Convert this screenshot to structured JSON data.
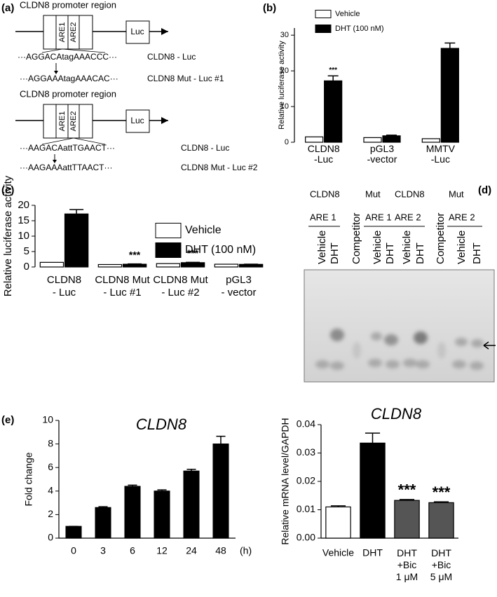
{
  "panel_labels": [
    "(a)",
    "(b)",
    "(c)",
    "(d)",
    "(e)"
  ],
  "diagram_a": {
    "constructs": [
      {
        "title": "CLDN8 promoter region",
        "elements": [
          "ARE1",
          "ARE2",
          "Luc"
        ],
        "sequences": [
          {
            "seq": "···AGGACAtagAAACCC···",
            "label": "CLDN8 - Luc"
          },
          {
            "seq": "···AGGAAAtagAAACAC···",
            "label": "CLDN8 Mut - Luc #1"
          }
        ]
      },
      {
        "title": "CLDN8 promoter region",
        "elements": [
          "ARE1",
          "ARE2",
          "Luc"
        ],
        "sequences": [
          {
            "seq": "···AAGACAattTGAACT···",
            "label": "CLDN8 - Luc"
          },
          {
            "seq": "···AAGAAAattTTAACT···",
            "label": "CLDN8 Mut - Luc #2"
          }
        ]
      }
    ]
  },
  "gel_d": {
    "groups": [
      {
        "top": "CLDN8",
        "site": "ARE 1"
      },
      {
        "top": "Mut",
        "site": "ARE 1"
      },
      {
        "top": "CLDN8",
        "site": "ARE 2"
      },
      {
        "top": "Mut",
        "site": "ARE 2"
      }
    ],
    "lanes": [
      "Vehicle",
      "DHT",
      "Competitor",
      "Vehicle",
      "DHT",
      "Vehicle",
      "DHT",
      "Competitor",
      "Vehicle",
      "DHT"
    ]
  },
  "chart_data": [
    {
      "type": "bar",
      "ylabel": "Relative luciferase activity",
      "categories": [
        "CLDN8\n-Luc",
        "pGL3\n-vector",
        "MMTV\n-Luc"
      ],
      "series": [
        {
          "name": "Vehicle",
          "color": "#ffffff",
          "values": [
            1.5,
            1.3,
            1.0
          ]
        },
        {
          "name": "DHT (100 nM)",
          "color": "#000000",
          "values": [
            17.2,
            1.8,
            26.3
          ],
          "errors": [
            1.4,
            0.2,
            1.5
          ],
          "annotations": [
            "***",
            null,
            null
          ]
        }
      ],
      "ylim": [
        0,
        32
      ],
      "yticks": [
        0,
        10,
        20,
        30
      ],
      "legend": "upper left"
    },
    {
      "type": "bar",
      "ylabel": "Relative luciferase activity",
      "categories": [
        "CLDN8\n- Luc",
        "CLDN8 Mut\n- Luc #1",
        "CLDN8 Mut\n- Luc #2",
        "pGL3\n- vector"
      ],
      "series": [
        {
          "name": "Vehicle",
          "color": "#ffffff",
          "values": [
            1.5,
            0.8,
            1.1,
            0.9
          ]
        },
        {
          "name": "DHT (100 nM)",
          "color": "#000000",
          "values": [
            17.2,
            0.9,
            1.4,
            0.85
          ],
          "errors": [
            1.4,
            0.1,
            0.1,
            0.05
          ],
          "annotations": [
            null,
            "***",
            "***",
            null
          ]
        }
      ],
      "ylim": [
        0,
        20
      ],
      "yticks": [
        0,
        5,
        10,
        15,
        20
      ],
      "legend": "upper right"
    },
    {
      "type": "bar",
      "title": "CLDN8",
      "ylabel": "Fold change",
      "xlabel": "(h)",
      "categories": [
        "0",
        "3",
        "6",
        "12",
        "24",
        "48"
      ],
      "values": [
        1.0,
        2.6,
        4.4,
        4.0,
        5.7,
        8.0
      ],
      "errors": [
        0,
        0.07,
        0.1,
        0.1,
        0.15,
        0.65
      ],
      "color": "#000000",
      "ylim": [
        0,
        10
      ],
      "yticks": [
        0,
        2,
        4,
        6,
        8,
        10
      ]
    },
    {
      "type": "bar",
      "title": "CLDN8",
      "ylabel": "Relative mRNA level/GAPDH",
      "categories": [
        "Vehicle",
        "DHT",
        "DHT\n+Bic\n1 μM",
        "DHT\n+Bic\n5 μM"
      ],
      "values": [
        0.011,
        0.0335,
        0.0133,
        0.0125
      ],
      "errors": [
        0.0004,
        0.0035,
        0.0003,
        0.0003
      ],
      "colors": [
        "#ffffff",
        "#000000",
        "#555555",
        "#555555"
      ],
      "annotations": [
        null,
        null,
        "***",
        "***"
      ],
      "ylim": [
        0,
        0.04
      ],
      "yticks": [
        {
          "value": 0,
          "label": "0.00"
        },
        {
          "value": 0.01,
          "label": "0.01"
        },
        {
          "value": 0.02,
          "label": "0.02"
        },
        {
          "value": 0.03,
          "label": "0.03"
        },
        {
          "value": 0.04,
          "label": "0.04"
        }
      ]
    }
  ]
}
